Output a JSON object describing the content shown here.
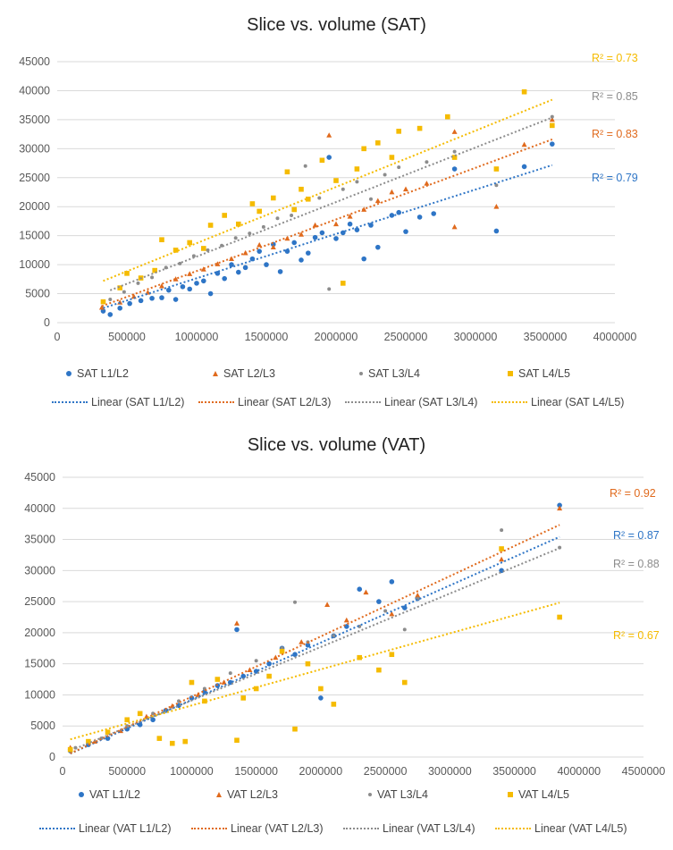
{
  "colors": {
    "s1": "#2E75C6",
    "s2": "#E06A1D",
    "s3": "#8C8C8C",
    "s4": "#F5BB00",
    "grid": "#D9D9D9",
    "tick": "#595959"
  },
  "chart_data": [
    {
      "type": "scatter",
      "title": "Slice vs. volume (SAT)",
      "xlim": [
        0,
        4000000
      ],
      "ylim": [
        0,
        45000
      ],
      "x_ticks": [
        "0",
        "500000",
        "1000000",
        "1500000",
        "2000000",
        "2500000",
        "3000000",
        "3500000",
        "4000000"
      ],
      "y_ticks": [
        "0",
        "5000",
        "10000",
        "15000",
        "20000",
        "25000",
        "30000",
        "35000",
        "40000",
        "45000"
      ],
      "grid": "horizontal",
      "legend_position": "bottom",
      "series": [
        {
          "name": "SAT L1/L2",
          "marker": "circle",
          "trendline_label": "Linear (SAT L1/L2)",
          "r2": "R² = 0.79",
          "fit": {
            "slope": 0.00765,
            "intercept": 0
          },
          "points": [
            [
              330000,
              2000
            ],
            [
              380000,
              1400
            ],
            [
              450000,
              2500
            ],
            [
              520000,
              3300
            ],
            [
              600000,
              3800
            ],
            [
              680000,
              4200
            ],
            [
              750000,
              4300
            ],
            [
              800000,
              5600
            ],
            [
              850000,
              4000
            ],
            [
              900000,
              6200
            ],
            [
              950000,
              5800
            ],
            [
              1000000,
              6800
            ],
            [
              1050000,
              7200
            ],
            [
              1100000,
              5000
            ],
            [
              1150000,
              8500
            ],
            [
              1200000,
              7600
            ],
            [
              1250000,
              10000
            ],
            [
              1300000,
              8700
            ],
            [
              1350000,
              9500
            ],
            [
              1400000,
              11000
            ],
            [
              1450000,
              12300
            ],
            [
              1500000,
              10000
            ],
            [
              1550000,
              13500
            ],
            [
              1600000,
              8800
            ],
            [
              1650000,
              12300
            ],
            [
              1700000,
              13800
            ],
            [
              1750000,
              10800
            ],
            [
              1800000,
              12000
            ],
            [
              1850000,
              14700
            ],
            [
              1900000,
              15500
            ],
            [
              1950000,
              28500
            ],
            [
              2000000,
              14500
            ],
            [
              2050000,
              15500
            ],
            [
              2100000,
              17000
            ],
            [
              2150000,
              16000
            ],
            [
              2200000,
              11000
            ],
            [
              2250000,
              16800
            ],
            [
              2300000,
              13000
            ],
            [
              2400000,
              18500
            ],
            [
              2450000,
              19000
            ],
            [
              2500000,
              15700
            ],
            [
              2600000,
              18200
            ],
            [
              2700000,
              18800
            ],
            [
              2850000,
              26500
            ],
            [
              3150000,
              15800
            ],
            [
              3350000,
              26900
            ],
            [
              3550000,
              30800
            ]
          ]
        },
        {
          "name": "SAT L2/L3",
          "marker": "triangle",
          "trendline_label": "Linear (SAT L2/L3)",
          "r2": "R² = 0.83",
          "fit": {
            "slope": 0.0089,
            "intercept": 0
          },
          "points": [
            [
              320000,
              2600
            ],
            [
              450000,
              3500
            ],
            [
              550000,
              4500
            ],
            [
              650000,
              5200
            ],
            [
              750000,
              6300
            ],
            [
              850000,
              7500
            ],
            [
              950000,
              8400
            ],
            [
              1050000,
              9200
            ],
            [
              1150000,
              10100
            ],
            [
              1250000,
              11000
            ],
            [
              1350000,
              12000
            ],
            [
              1450000,
              13400
            ],
            [
              1550000,
              13000
            ],
            [
              1650000,
              14500
            ],
            [
              1750000,
              15200
            ],
            [
              1850000,
              16800
            ],
            [
              1950000,
              32300
            ],
            [
              2000000,
              17000
            ],
            [
              2100000,
              18300
            ],
            [
              2200000,
              19500
            ],
            [
              2300000,
              21000
            ],
            [
              2400000,
              22500
            ],
            [
              2500000,
              23000
            ],
            [
              2650000,
              24000
            ],
            [
              2850000,
              16500
            ],
            [
              2850000,
              32900
            ],
            [
              3150000,
              20000
            ],
            [
              3350000,
              30700
            ],
            [
              3550000,
              35000
            ]
          ]
        },
        {
          "name": "SAT L3/L4",
          "marker": "small-circle",
          "trendline_label": "Linear (SAT L3/L4)",
          "r2": "R² = 0.85",
          "fit": {
            "slope": 0.0094,
            "intercept": 2000
          },
          "points": [
            [
              380000,
              4000
            ],
            [
              480000,
              5300
            ],
            [
              580000,
              6800
            ],
            [
              680000,
              7800
            ],
            [
              780000,
              9500
            ],
            [
              880000,
              10200
            ],
            [
              980000,
              11500
            ],
            [
              1080000,
              12500
            ],
            [
              1180000,
              13300
            ],
            [
              1280000,
              14600
            ],
            [
              1380000,
              15400
            ],
            [
              1480000,
              16500
            ],
            [
              1580000,
              18000
            ],
            [
              1680000,
              18500
            ],
            [
              1780000,
              27000
            ],
            [
              1880000,
              21500
            ],
            [
              1950000,
              5800
            ],
            [
              2050000,
              23000
            ],
            [
              2150000,
              24300
            ],
            [
              2250000,
              21300
            ],
            [
              2350000,
              25500
            ],
            [
              2450000,
              26800
            ],
            [
              2650000,
              27700
            ],
            [
              2850000,
              29500
            ],
            [
              3150000,
              23700
            ],
            [
              3550000,
              35500
            ]
          ]
        },
        {
          "name": "SAT L4/L5",
          "marker": "square",
          "trendline_label": "Linear (SAT L4/L5)",
          "r2": "R² = 0.73",
          "fit": {
            "slope": 0.0097,
            "intercept": 4000
          },
          "points": [
            [
              330000,
              3600
            ],
            [
              450000,
              6000
            ],
            [
              500000,
              8500
            ],
            [
              600000,
              7700
            ],
            [
              700000,
              9000
            ],
            [
              750000,
              14300
            ],
            [
              850000,
              12500
            ],
            [
              950000,
              13800
            ],
            [
              1050000,
              12800
            ],
            [
              1100000,
              16800
            ],
            [
              1200000,
              18500
            ],
            [
              1300000,
              17000
            ],
            [
              1400000,
              20500
            ],
            [
              1450000,
              19200
            ],
            [
              1550000,
              21500
            ],
            [
              1650000,
              26000
            ],
            [
              1700000,
              19500
            ],
            [
              1750000,
              23000
            ],
            [
              1800000,
              21300
            ],
            [
              1900000,
              28000
            ],
            [
              2000000,
              24500
            ],
            [
              2050000,
              6800
            ],
            [
              2150000,
              26500
            ],
            [
              2200000,
              30000
            ],
            [
              2300000,
              31000
            ],
            [
              2400000,
              28500
            ],
            [
              2450000,
              33000
            ],
            [
              2600000,
              33500
            ],
            [
              2800000,
              35500
            ],
            [
              2850000,
              28500
            ],
            [
              3150000,
              26500
            ],
            [
              3350000,
              39800
            ],
            [
              3550000,
              34000
            ]
          ]
        }
      ]
    },
    {
      "type": "scatter",
      "title": "Slice vs. volume (VAT)",
      "xlim": [
        0,
        4500000
      ],
      "ylim": [
        0,
        45000
      ],
      "x_ticks": [
        "0",
        "500000",
        "1000000",
        "1500000",
        "2000000",
        "2500000",
        "3000000",
        "3500000",
        "4000000",
        "4500000"
      ],
      "y_ticks": [
        "0",
        "5000",
        "10000",
        "15000",
        "20000",
        "25000",
        "30000",
        "35000",
        "40000",
        "45000"
      ],
      "grid": "horizontal",
      "legend_position": "bottom",
      "series": [
        {
          "name": "VAT L1/L2",
          "marker": "circle",
          "trendline_label": "Linear (VAT L1/L2)",
          "r2": "R² = 0.87",
          "fit": {
            "slope": 0.0092,
            "intercept": 0
          },
          "points": [
            [
              60000,
              1000
            ],
            [
              200000,
              2000
            ],
            [
              350000,
              3000
            ],
            [
              500000,
              4500
            ],
            [
              600000,
              5200
            ],
            [
              700000,
              6000
            ],
            [
              800000,
              7500
            ],
            [
              900000,
              8300
            ],
            [
              1000000,
              9500
            ],
            [
              1100000,
              10500
            ],
            [
              1200000,
              11500
            ],
            [
              1300000,
              12000
            ],
            [
              1350000,
              20500
            ],
            [
              1400000,
              13000
            ],
            [
              1500000,
              13800
            ],
            [
              1600000,
              15000
            ],
            [
              1700000,
              17500
            ],
            [
              1800000,
              16500
            ],
            [
              1900000,
              18000
            ],
            [
              2000000,
              9500
            ],
            [
              2100000,
              19500
            ],
            [
              2200000,
              21000
            ],
            [
              2300000,
              27000
            ],
            [
              2450000,
              25000
            ],
            [
              2550000,
              28200
            ],
            [
              2650000,
              24000
            ],
            [
              2750000,
              25500
            ],
            [
              3400000,
              30000
            ],
            [
              3850000,
              40500
            ]
          ]
        },
        {
          "name": "VAT L2/L3",
          "marker": "triangle",
          "trendline_label": "Linear (VAT L2/L3)",
          "r2": "R² = 0.92",
          "fit": {
            "slope": 0.0097,
            "intercept": 0
          },
          "points": [
            [
              60000,
              1500
            ],
            [
              250000,
              2500
            ],
            [
              450000,
              4200
            ],
            [
              650000,
              6500
            ],
            [
              850000,
              8200
            ],
            [
              1050000,
              10000
            ],
            [
              1250000,
              12000
            ],
            [
              1350000,
              21500
            ],
            [
              1450000,
              14000
            ],
            [
              1650000,
              16000
            ],
            [
              1850000,
              18500
            ],
            [
              2050000,
              24500
            ],
            [
              2200000,
              22000
            ],
            [
              2350000,
              26500
            ],
            [
              2550000,
              23000
            ],
            [
              2750000,
              26000
            ],
            [
              3400000,
              31800
            ],
            [
              3850000,
              40000
            ]
          ]
        },
        {
          "name": "VAT L3/L4",
          "marker": "small-circle",
          "trendline_label": "Linear (VAT L3/L4)",
          "r2": "R² = 0.88",
          "fit": {
            "slope": 0.0086,
            "intercept": 500
          },
          "points": [
            [
              100000,
              1500
            ],
            [
              300000,
              3000
            ],
            [
              500000,
              5000
            ],
            [
              700000,
              7000
            ],
            [
              900000,
              9000
            ],
            [
              1100000,
              11000
            ],
            [
              1300000,
              13500
            ],
            [
              1500000,
              15500
            ],
            [
              1700000,
              17500
            ],
            [
              1800000,
              24900
            ],
            [
              1900000,
              18500
            ],
            [
              2100000,
              19500
            ],
            [
              2300000,
              21000
            ],
            [
              2500000,
              23500
            ],
            [
              2650000,
              20500
            ],
            [
              2750000,
              25500
            ],
            [
              3400000,
              36500
            ],
            [
              3850000,
              33700
            ]
          ]
        },
        {
          "name": "VAT L4/L5",
          "marker": "square",
          "trendline_label": "Linear (VAT L4/L5)",
          "r2": "R² = 0.67",
          "fit": {
            "slope": 0.0058,
            "intercept": 2500
          },
          "points": [
            [
              60000,
              1200
            ],
            [
              200000,
              2500
            ],
            [
              350000,
              4000
            ],
            [
              500000,
              6000
            ],
            [
              600000,
              7000
            ],
            [
              750000,
              3000
            ],
            [
              850000,
              2200
            ],
            [
              950000,
              2500
            ],
            [
              1000000,
              12000
            ],
            [
              1100000,
              9000
            ],
            [
              1200000,
              12500
            ],
            [
              1350000,
              2700
            ],
            [
              1400000,
              9500
            ],
            [
              1500000,
              11000
            ],
            [
              1600000,
              13000
            ],
            [
              1700000,
              17000
            ],
            [
              1800000,
              4500
            ],
            [
              1900000,
              15000
            ],
            [
              2000000,
              11000
            ],
            [
              2100000,
              8500
            ],
            [
              2300000,
              16000
            ],
            [
              2450000,
              14000
            ],
            [
              2550000,
              16500
            ],
            [
              2650000,
              12000
            ],
            [
              3400000,
              33500
            ],
            [
              3850000,
              22500
            ]
          ]
        }
      ]
    }
  ]
}
